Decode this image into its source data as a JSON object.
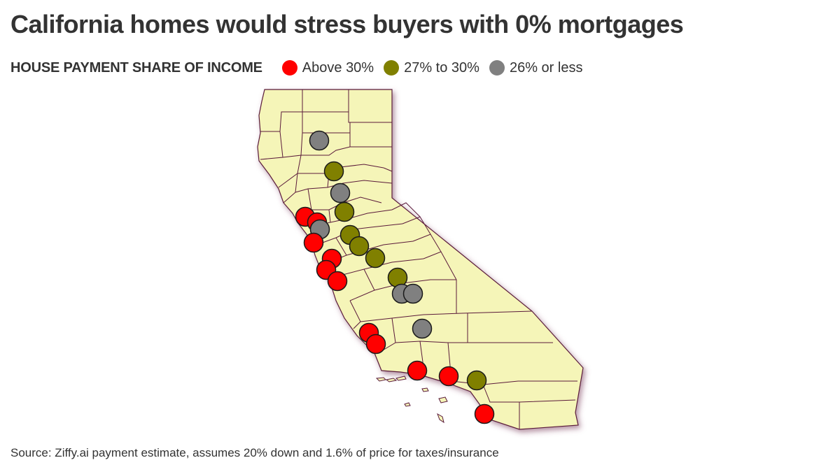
{
  "title": "California homes would stress buyers with 0% mortgages",
  "legend": {
    "heading": "HOUSE PAYMENT SHARE OF INCOME",
    "items": [
      {
        "label": "Above 30%",
        "color": "#ff0000",
        "category": "above-30"
      },
      {
        "label": "27% to 30%",
        "color": "#808000",
        "category": "27-30"
      },
      {
        "label": "26% or less",
        "color": "#808080",
        "category": "26-or-less"
      }
    ]
  },
  "map": {
    "land_color": "#f5f5b8",
    "border_color": "#5a1a3a",
    "marker_outline": "#1a1a1a"
  },
  "source": "Source: Ziffy.ai payment estimate, assumes 20% down and 1.6% of price for taxes/insurance"
}
